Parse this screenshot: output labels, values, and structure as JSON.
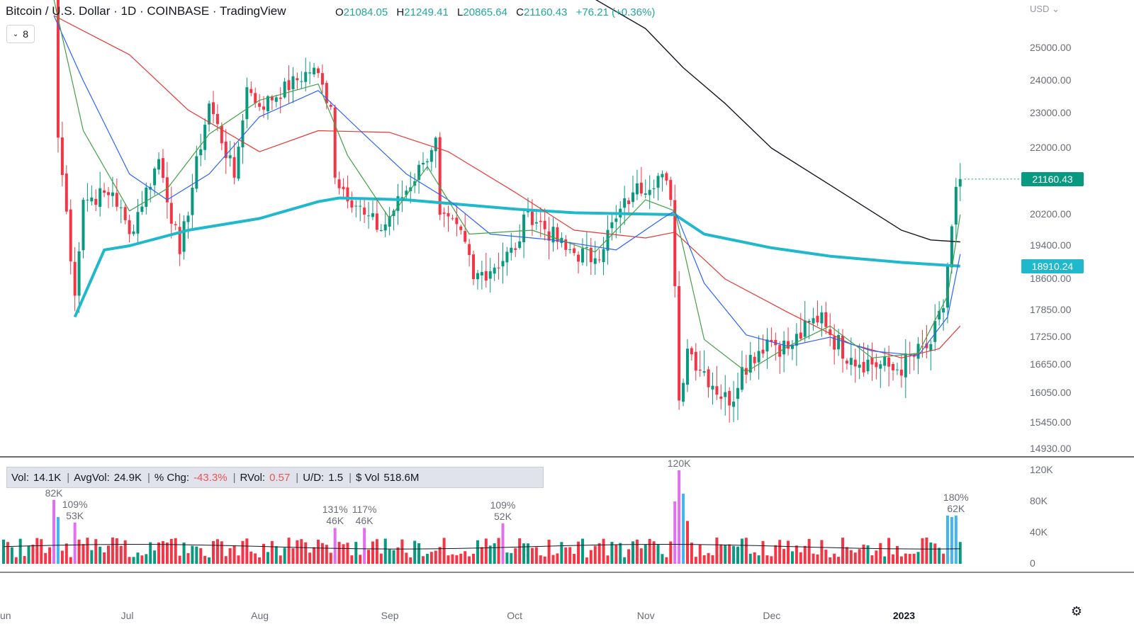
{
  "header": {
    "symbol": "Bitcoin / U.S. Dollar · 1D · COINBASE · TradingView",
    "o_label": "O",
    "o": "21084.05",
    "h_label": "H",
    "h": "21249.41",
    "l_label": "L",
    "l": "20865.64",
    "c_label": "C",
    "c": "21160.43",
    "change": "+76.21 (+0.36%)",
    "indicator_count": "8"
  },
  "currency": "USD",
  "price_labels": {
    "last": "21160.43",
    "ma": "18910.24"
  },
  "stats": {
    "vol_label": "Vol:",
    "vol": "14.1K",
    "avgvol_label": "AvgVol:",
    "avgvol": "24.9K",
    "chg_label": "% Chg:",
    "chg": "-43.3%",
    "rvol_label": "RVol:",
    "rvol": "0.57",
    "ud_label": "U/D:",
    "ud": "1.5",
    "dvol_label": "$ Vol",
    "dvol": "518.6M"
  },
  "volume_annotations": [
    {
      "pct": "",
      "vol": "82K",
      "x": "Jun 13"
    },
    {
      "pct": "109%",
      "vol": "53K",
      "x": "Jun 18"
    },
    {
      "pct": "131%",
      "vol": "46K",
      "x": "Aug 19"
    },
    {
      "pct": "117%",
      "vol": "46K",
      "x": "Aug 26"
    },
    {
      "pct": "109%",
      "vol": "52K",
      "x": "Sep 28"
    },
    {
      "pct": "",
      "vol": "120K",
      "x": "Nov 9"
    },
    {
      "pct": "180%",
      "vol": "62K",
      "x": "Jan 14"
    }
  ],
  "colors": {
    "up": "#089981",
    "down": "#f23645",
    "ma_thick": "#1fb8cc",
    "ma_black": "#131722",
    "ma_green": "#43a047",
    "ma_blue": "#2962ff",
    "ma_red": "#e53935",
    "volume_highlight": "#e070f0",
    "volume_highlight_up": "#45b5f0"
  },
  "chart_data": {
    "type": "candlestick",
    "title": "Bitcoin / U.S. Dollar · 1D · COINBASE · TradingView",
    "y_ticks": [
      "25000.00",
      "24000.00",
      "23000.00",
      "22000.00",
      "20200.00",
      "19400.00",
      "18600.00",
      "17850.00",
      "17250.00",
      "16650.00",
      "16050.00",
      "15450.00",
      "14930.00"
    ],
    "volume_ticks": [
      "120K",
      "80K",
      "40K",
      "0"
    ],
    "x_ticks": [
      "Jun",
      "Jul",
      "Aug",
      "Sep",
      "Oct",
      "Nov",
      "Dec",
      "2023"
    ],
    "x_range": [
      "Jun 11 2022",
      "Jan 15 2023"
    ],
    "volume_range": [
      0,
      130000
    ],
    "ohlc_last": {
      "o": 21084.05,
      "h": 21249.41,
      "l": 20865.64,
      "c": 21160.43
    },
    "ma_levels_last": {
      "thick_cyan": 18910.24
    },
    "grid": false,
    "price_anchors": [
      [
        "Jun 13",
        26800
      ],
      [
        "Jun 14",
        22300
      ],
      [
        "Jun 18",
        18200
      ],
      [
        "Jun 20",
        20600
      ],
      [
        "Jun 27",
        20800
      ],
      [
        "Jul 1",
        19700
      ],
      [
        "Jul 8",
        21700
      ],
      [
        "Jul 13",
        19200
      ],
      [
        "Jul 20",
        23300
      ],
      [
        "Jul 26",
        21200
      ],
      [
        "Jul 29",
        23800
      ],
      [
        "Aug 1",
        23200
      ],
      [
        "Aug 14",
        24400
      ],
      [
        "Aug 18",
        23200
      ],
      [
        "Aug 19",
        21200
      ],
      [
        "Aug 26",
        20200
      ],
      [
        "Aug 30",
        19800
      ],
      [
        "Sep 9",
        21600
      ],
      [
        "Sep 12",
        22300
      ],
      [
        "Sep 13",
        20200
      ],
      [
        "Sep 19",
        19500
      ],
      [
        "Sep 21",
        18600
      ],
      [
        "Oct 1",
        19300
      ],
      [
        "Oct 4",
        20300
      ],
      [
        "Oct 13",
        19300
      ],
      [
        "Oct 20",
        19100
      ],
      [
        "Oct 25",
        20100
      ],
      [
        "Oct 29",
        20800
      ],
      [
        "Nov 5",
        21300
      ],
      [
        "Nov 7",
        20600
      ],
      [
        "Nov 9",
        15900
      ],
      [
        "Nov 11",
        17000
      ],
      [
        "Nov 21",
        15800
      ],
      [
        "Nov 24",
        16600
      ],
      [
        "Nov 30",
        17200
      ],
      [
        "Dec 5",
        17000
      ],
      [
        "Dec 13",
        17800
      ],
      [
        "Dec 15",
        17300
      ],
      [
        "Dec 20",
        16800
      ],
      [
        "Dec 31",
        16550
      ],
      [
        "Jan 8",
        17100
      ],
      [
        "Jan 11",
        17900
      ],
      [
        "Jan 12",
        18900
      ],
      [
        "Jan 13",
        19900
      ],
      [
        "Jan 14",
        20950
      ],
      [
        "Jan 15",
        21160
      ]
    ],
    "series": [
      {
        "name": "",
        "kind": "ma",
        "style": "thick_cyan",
        "points": [
          [
            "Jun 18",
            17700
          ],
          [
            "Jun 25",
            19300
          ],
          [
            "Jul 1",
            19400
          ],
          [
            "Jul 15",
            19800
          ],
          [
            "Aug 1",
            20100
          ],
          [
            "Aug 15",
            20550
          ],
          [
            "Aug 20",
            20650
          ],
          [
            "Sep 5",
            20600
          ],
          [
            "Oct 1",
            20350
          ],
          [
            "Oct 15",
            20250
          ],
          [
            "Nov 8",
            20200
          ],
          [
            "Nov 15",
            19700
          ],
          [
            "Dec 1",
            19350
          ],
          [
            "Dec 15",
            19150
          ],
          [
            "Jan 1",
            19000
          ],
          [
            "Jan 15",
            18910
          ]
        ]
      },
      {
        "name": "",
        "kind": "ma",
        "style": "black",
        "points": [
          [
            "Oct 20",
            26500
          ],
          [
            "Nov 1",
            25600
          ],
          [
            "Nov 10",
            24400
          ],
          [
            "Nov 20",
            23300
          ],
          [
            "Dec 1",
            22000
          ],
          [
            "Dec 15",
            21000
          ],
          [
            "Jan 1",
            19800
          ],
          [
            "Jan 8",
            19550
          ],
          [
            "Jan 15",
            19500
          ]
        ]
      },
      {
        "name": "",
        "kind": "ma",
        "style": "red",
        "points": [
          [
            "Jun 13",
            26000
          ],
          [
            "Jul 1",
            24800
          ],
          [
            "Jul 15",
            23100
          ],
          [
            "Aug 1",
            21900
          ],
          [
            "Aug 15",
            22500
          ],
          [
            "Sep 1",
            22450
          ],
          [
            "Sep 15",
            21900
          ],
          [
            "Oct 1",
            20800
          ],
          [
            "Oct 15",
            19800
          ],
          [
            "Nov 1",
            19600
          ],
          [
            "Nov 8",
            19750
          ],
          [
            "Nov 20",
            18600
          ],
          [
            "Dec 5",
            17800
          ],
          [
            "Dec 20",
            17100
          ],
          [
            "Jan 1",
            16800
          ],
          [
            "Jan 10",
            17000
          ],
          [
            "Jan 15",
            17500
          ]
        ]
      },
      {
        "name": "",
        "kind": "ma",
        "style": "blue",
        "points": [
          [
            "Jun 13",
            26000
          ],
          [
            "Jun 20",
            24000
          ],
          [
            "Jul 1",
            21300
          ],
          [
            "Jul 10",
            20600
          ],
          [
            "Jul 20",
            21300
          ],
          [
            "Aug 1",
            22900
          ],
          [
            "Aug 15",
            23700
          ],
          [
            "Aug 25",
            22500
          ],
          [
            "Sep 5",
            21300
          ],
          [
            "Sep 15",
            20600
          ],
          [
            "Sep 25",
            19700
          ],
          [
            "Oct 10",
            19550
          ],
          [
            "Oct 25",
            19300
          ],
          [
            "Nov 5",
            20100
          ],
          [
            "Nov 8",
            20300
          ],
          [
            "Nov 15",
            18500
          ],
          [
            "Nov 25",
            17300
          ],
          [
            "Dec 5",
            17050
          ],
          [
            "Dec 15",
            17250
          ],
          [
            "Dec 25",
            16950
          ],
          [
            "Jan 5",
            16850
          ],
          [
            "Jan 12",
            17700
          ],
          [
            "Jan 15",
            19200
          ]
        ]
      },
      {
        "name": "",
        "kind": "ma",
        "style": "green",
        "points": [
          [
            "Jun 13",
            26500
          ],
          [
            "Jun 20",
            22500
          ],
          [
            "Jul 1",
            20300
          ],
          [
            "Jul 10",
            20900
          ],
          [
            "Jul 20",
            22400
          ],
          [
            "Aug 1",
            23400
          ],
          [
            "Aug 15",
            23900
          ],
          [
            "Aug 22",
            21800
          ],
          [
            "Sep 1",
            20100
          ],
          [
            "Sep 10",
            21500
          ],
          [
            "Sep 20",
            19700
          ],
          [
            "Oct 5",
            19800
          ],
          [
            "Oct 20",
            19250
          ],
          [
            "Nov 1",
            20600
          ],
          [
            "Nov 8",
            20300
          ],
          [
            "Nov 15",
            17200
          ],
          [
            "Nov 25",
            16500
          ],
          [
            "Dec 5",
            17050
          ],
          [
            "Dec 15",
            17500
          ],
          [
            "Dec 25",
            16800
          ],
          [
            "Jan 5",
            16900
          ],
          [
            "Jan 12",
            18200
          ],
          [
            "Jan 15",
            20200
          ]
        ]
      }
    ],
    "volume_spikes": [
      [
        "Jun 13",
        82000,
        "highlight"
      ],
      [
        "Jun 14",
        60000,
        "highlight_up"
      ],
      [
        "Jun 18",
        53000,
        "highlight"
      ],
      [
        "Aug 19",
        46000,
        "highlight"
      ],
      [
        "Aug 26",
        46000,
        "highlight"
      ],
      [
        "Sep 28",
        52000,
        "highlight"
      ],
      [
        "Nov 8",
        80000,
        "highlight"
      ],
      [
        "Nov 9",
        120000,
        "highlight"
      ],
      [
        "Nov 10",
        90000,
        "highlight_up"
      ],
      [
        "Nov 11",
        55000,
        "down"
      ],
      [
        "Jan 12",
        62000,
        "highlight_up"
      ],
      [
        "Jan 13",
        60000,
        "highlight_up"
      ],
      [
        "Jan 14",
        62000,
        "highlight_up"
      ]
    ]
  }
}
